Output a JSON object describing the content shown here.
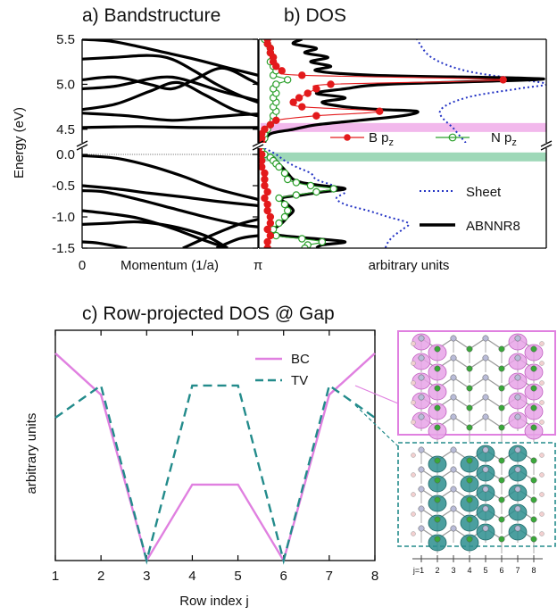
{
  "chart_data": [
    {
      "panel": "a",
      "type": "line",
      "title": "a) Bandstructure",
      "ylabel": "Energy (eV)",
      "xlabel": "Momentum (1/a)",
      "xticks": [
        "0",
        "π"
      ],
      "yticks_upper": [
        "5.5",
        "5.0",
        "4.5"
      ],
      "yticks_lower": [
        "0.0",
        "-0.5",
        "-1.0",
        "-1.5"
      ],
      "ylim_upper": [
        4.35,
        5.5
      ],
      "ylim_lower": [
        -1.5,
        0.1
      ],
      "bands_upper": [
        [
          [
            0.0,
            5.5
          ],
          [
            0.5,
            5.48
          ],
          [
            1.0,
            5.42
          ],
          [
            1.5,
            5.35
          ],
          [
            2.0,
            5.28
          ],
          [
            2.5,
            5.2
          ],
          [
            3.14,
            5.1
          ]
        ],
        [
          [
            0.0,
            5.28
          ],
          [
            0.6,
            5.3
          ],
          [
            1.2,
            5.32
          ],
          [
            1.6,
            5.28
          ],
          [
            2.0,
            5.15
          ],
          [
            2.4,
            5.0
          ],
          [
            2.8,
            4.88
          ],
          [
            3.14,
            4.8
          ]
        ],
        [
          [
            0.0,
            5.05
          ],
          [
            0.6,
            5.08
          ],
          [
            1.2,
            5.0
          ],
          [
            1.6,
            4.95
          ],
          [
            2.0,
            5.05
          ],
          [
            2.5,
            5.18
          ],
          [
            3.0,
            5.05
          ],
          [
            3.14,
            5.0
          ]
        ],
        [
          [
            0.0,
            4.95
          ],
          [
            0.6,
            4.98
          ],
          [
            1.2,
            5.06
          ],
          [
            1.6,
            5.08
          ],
          [
            2.0,
            5.02
          ],
          [
            2.5,
            4.92
          ],
          [
            3.14,
            4.82
          ]
        ],
        [
          [
            0.0,
            4.72
          ],
          [
            0.6,
            4.78
          ],
          [
            1.2,
            4.92
          ],
          [
            1.7,
            5.02
          ],
          [
            2.2,
            4.88
          ],
          [
            2.7,
            4.72
          ],
          [
            3.14,
            4.65
          ]
        ],
        [
          [
            0.0,
            4.68
          ],
          [
            0.8,
            4.65
          ],
          [
            1.6,
            4.6
          ],
          [
            2.2,
            4.63
          ],
          [
            2.8,
            4.66
          ],
          [
            3.14,
            4.67
          ]
        ],
        [
          [
            0.0,
            4.52
          ],
          [
            1.0,
            4.53
          ],
          [
            2.0,
            4.52
          ],
          [
            3.14,
            4.52
          ]
        ]
      ],
      "bands_lower": [
        [
          [
            0.0,
            -0.02
          ],
          [
            0.6,
            -0.06
          ],
          [
            1.2,
            -0.18
          ],
          [
            1.8,
            -0.35
          ],
          [
            2.4,
            -0.55
          ],
          [
            3.14,
            -0.72
          ]
        ],
        [
          [
            0.0,
            -0.5
          ],
          [
            0.6,
            -0.55
          ],
          [
            1.2,
            -0.62
          ],
          [
            1.8,
            -0.68
          ],
          [
            2.4,
            -0.75
          ],
          [
            3.14,
            -0.82
          ]
        ],
        [
          [
            0.0,
            -0.58
          ],
          [
            0.4,
            -0.6
          ],
          [
            1.0,
            -0.72
          ],
          [
            1.6,
            -0.86
          ],
          [
            2.2,
            -1.0
          ],
          [
            2.8,
            -1.12
          ],
          [
            3.14,
            -1.16
          ]
        ],
        [
          [
            0.0,
            -0.9
          ],
          [
            0.5,
            -0.95
          ],
          [
            1.0,
            -1.02
          ],
          [
            1.6,
            -1.18
          ],
          [
            2.2,
            -1.38
          ],
          [
            2.6,
            -1.5
          ]
        ],
        [
          [
            0.0,
            -1.12
          ],
          [
            0.5,
            -1.1
          ],
          [
            1.0,
            -1.08
          ],
          [
            1.6,
            -1.15
          ],
          [
            2.2,
            -1.3
          ],
          [
            2.6,
            -1.5
          ]
        ],
        [
          [
            1.8,
            -1.5
          ],
          [
            2.3,
            -1.3
          ],
          [
            2.8,
            -1.12
          ],
          [
            3.14,
            -1.04
          ]
        ],
        [
          [
            2.4,
            -1.5
          ],
          [
            2.8,
            -1.35
          ],
          [
            3.14,
            -1.3
          ]
        ],
        [
          [
            0.0,
            -1.4
          ],
          [
            0.3,
            -1.42
          ],
          [
            0.8,
            -1.5
          ]
        ]
      ]
    },
    {
      "panel": "b",
      "type": "line",
      "title": "b) DOS",
      "xlabel": "arbitrary units",
      "legend": [
        {
          "name": "B p",
          "sub": "z",
          "color": "#e31a1c",
          "style": "line+filled-circle"
        },
        {
          "name": "N p",
          "sub": "z",
          "color": "#2ca02c",
          "style": "line+open-circle"
        },
        {
          "name": "Sheet",
          "color": "#2333c4",
          "style": "dotted"
        },
        {
          "name": "ABNNR8",
          "color": "#000000",
          "style": "thick"
        }
      ],
      "highlights": [
        {
          "energy": 4.52,
          "color": "#f2b8ec",
          "region": "upper"
        },
        {
          "energy": -0.04,
          "color": "#9ed8b8",
          "region": "lower"
        }
      ],
      "sheet_upper": [
        [
          4.35,
          0.72
        ],
        [
          4.5,
          0.68
        ],
        [
          4.7,
          0.63
        ],
        [
          4.85,
          0.72
        ],
        [
          4.95,
          0.9
        ],
        [
          5.0,
          1.0
        ],
        [
          5.05,
          0.92
        ],
        [
          5.15,
          0.72
        ],
        [
          5.3,
          0.6
        ],
        [
          5.5,
          0.55
        ]
      ],
      "abnnr_upper": [
        [
          4.35,
          0.02
        ],
        [
          4.45,
          0.04
        ],
        [
          4.5,
          0.12
        ],
        [
          4.55,
          0.2
        ],
        [
          4.6,
          0.35
        ],
        [
          4.65,
          0.5
        ],
        [
          4.7,
          0.55
        ],
        [
          4.72,
          0.42
        ],
        [
          4.75,
          0.3
        ],
        [
          4.8,
          0.22
        ],
        [
          4.85,
          0.3
        ],
        [
          4.9,
          0.2
        ],
        [
          4.95,
          0.3
        ],
        [
          5.0,
          0.45
        ],
        [
          5.05,
          0.95
        ],
        [
          5.07,
          0.9
        ],
        [
          5.1,
          0.4
        ],
        [
          5.15,
          0.2
        ],
        [
          5.2,
          0.25
        ],
        [
          5.25,
          0.18
        ],
        [
          5.3,
          0.24
        ],
        [
          5.35,
          0.16
        ],
        [
          5.4,
          0.2
        ],
        [
          5.45,
          0.12
        ],
        [
          5.5,
          0.15
        ]
      ],
      "bpz_upper": [
        [
          4.35,
          0.01
        ],
        [
          4.4,
          0.01
        ],
        [
          4.45,
          0.01
        ],
        [
          4.5,
          0.02
        ],
        [
          4.55,
          0.04
        ],
        [
          4.6,
          0.06
        ],
        [
          4.65,
          0.2
        ],
        [
          4.7,
          0.42
        ],
        [
          4.75,
          0.15
        ],
        [
          4.8,
          0.12
        ],
        [
          4.85,
          0.14
        ],
        [
          4.9,
          0.17
        ],
        [
          4.95,
          0.2
        ],
        [
          5.0,
          0.25
        ],
        [
          5.05,
          0.85
        ],
        [
          5.1,
          0.15
        ],
        [
          5.15,
          0.08
        ],
        [
          5.2,
          0.06
        ],
        [
          5.25,
          0.05
        ],
        [
          5.3,
          0.05
        ],
        [
          5.35,
          0.04
        ],
        [
          5.4,
          0.04
        ],
        [
          5.45,
          0.03
        ],
        [
          5.5,
          0.03
        ]
      ],
      "npz_upper": [
        [
          4.35,
          0.01
        ],
        [
          4.4,
          0.02
        ],
        [
          4.45,
          0.02
        ],
        [
          4.5,
          0.03
        ],
        [
          4.55,
          0.04
        ],
        [
          4.6,
          0.05
        ],
        [
          4.65,
          0.05
        ],
        [
          4.7,
          0.06
        ],
        [
          4.75,
          0.05
        ],
        [
          4.8,
          0.06
        ],
        [
          4.85,
          0.05
        ],
        [
          4.9,
          0.06
        ],
        [
          4.95,
          0.05
        ],
        [
          5.0,
          0.06
        ],
        [
          5.05,
          0.1
        ],
        [
          5.1,
          0.05
        ],
        [
          5.15,
          0.06
        ],
        [
          5.2,
          0.05
        ],
        [
          5.25,
          0.04
        ],
        [
          5.3,
          0.05
        ],
        [
          5.35,
          0.04
        ],
        [
          5.4,
          0.04
        ],
        [
          5.45,
          0.03
        ],
        [
          5.5,
          0.02
        ]
      ],
      "sheet_lower": [
        [
          0.1,
          0.02
        ],
        [
          0.0,
          0.06
        ],
        [
          -0.1,
          0.09
        ],
        [
          -0.2,
          0.13
        ],
        [
          -0.3,
          0.18
        ],
        [
          -0.4,
          0.2
        ],
        [
          -0.5,
          0.26
        ],
        [
          -0.6,
          0.3
        ],
        [
          -0.7,
          0.27
        ],
        [
          -0.8,
          0.3
        ],
        [
          -0.9,
          0.38
        ],
        [
          -1.0,
          0.45
        ],
        [
          -1.1,
          0.52
        ],
        [
          -1.2,
          0.5
        ],
        [
          -1.3,
          0.47
        ],
        [
          -1.4,
          0.45
        ],
        [
          -1.5,
          0.44
        ]
      ],
      "abnnr_lower": [
        [
          0.1,
          0.0
        ],
        [
          0.05,
          0.01
        ],
        [
          0.0,
          0.02
        ],
        [
          -0.05,
          0.05
        ],
        [
          -0.1,
          0.06
        ],
        [
          -0.15,
          0.07
        ],
        [
          -0.2,
          0.08
        ],
        [
          -0.3,
          0.1
        ],
        [
          -0.4,
          0.12
        ],
        [
          -0.45,
          0.15
        ],
        [
          -0.5,
          0.22
        ],
        [
          -0.55,
          0.3
        ],
        [
          -0.6,
          0.22
        ],
        [
          -0.65,
          0.15
        ],
        [
          -0.7,
          0.08
        ],
        [
          -0.8,
          0.1
        ],
        [
          -0.9,
          0.12
        ],
        [
          -1.0,
          0.1
        ],
        [
          -1.1,
          0.08
        ],
        [
          -1.2,
          0.05
        ],
        [
          -1.25,
          0.04
        ],
        [
          -1.3,
          0.08
        ],
        [
          -1.35,
          0.2
        ],
        [
          -1.4,
          0.3
        ],
        [
          -1.45,
          0.22
        ],
        [
          -1.5,
          0.2
        ]
      ],
      "bpz_lower": [
        [
          0.1,
          0.0
        ],
        [
          0.0,
          0.01
        ],
        [
          -0.1,
          0.01
        ],
        [
          -0.2,
          0.01
        ],
        [
          -0.3,
          0.02
        ],
        [
          -0.4,
          0.02
        ],
        [
          -0.5,
          0.02
        ],
        [
          -0.6,
          0.03
        ],
        [
          -0.7,
          0.02
        ],
        [
          -0.8,
          0.03
        ],
        [
          -0.9,
          0.03
        ],
        [
          -1.0,
          0.04
        ],
        [
          -1.1,
          0.04
        ],
        [
          -1.2,
          0.03
        ],
        [
          -1.3,
          0.04
        ],
        [
          -1.4,
          0.03
        ],
        [
          -1.5,
          0.03
        ]
      ],
      "npz_lower": [
        [
          0.1,
          0.0
        ],
        [
          0.05,
          0.01
        ],
        [
          0.0,
          0.02
        ],
        [
          -0.05,
          0.04
        ],
        [
          -0.1,
          0.05
        ],
        [
          -0.15,
          0.06
        ],
        [
          -0.2,
          0.07
        ],
        [
          -0.3,
          0.09
        ],
        [
          -0.4,
          0.1
        ],
        [
          -0.45,
          0.13
        ],
        [
          -0.5,
          0.18
        ],
        [
          -0.55,
          0.26
        ],
        [
          -0.6,
          0.2
        ],
        [
          -0.65,
          0.13
        ],
        [
          -0.7,
          0.07
        ],
        [
          -0.8,
          0.09
        ],
        [
          -0.9,
          0.1
        ],
        [
          -1.0,
          0.09
        ],
        [
          -1.1,
          0.07
        ],
        [
          -1.2,
          0.05
        ],
        [
          -1.3,
          0.06
        ],
        [
          -1.35,
          0.15
        ],
        [
          -1.4,
          0.22
        ],
        [
          -1.45,
          0.17
        ],
        [
          -1.5,
          0.16
        ]
      ]
    },
    {
      "panel": "c",
      "type": "line",
      "title": "c) Row-projected DOS @ Gap",
      "xlabel": "Row index j",
      "ylabel": "arbitrary units",
      "categories": [
        "1",
        "2",
        "3",
        "4",
        "5",
        "6",
        "7",
        "8"
      ],
      "x": [
        1,
        2,
        3,
        4,
        5,
        6,
        7,
        8
      ],
      "xlim": [
        1,
        8
      ],
      "ylim": [
        0,
        1
      ],
      "series": [
        {
          "name": "BC",
          "color": "#e080e0",
          "style": "solid",
          "values": [
            0.9,
            0.72,
            0.0,
            0.33,
            0.33,
            0.0,
            0.72,
            0.9
          ]
        },
        {
          "name": "TV",
          "color": "#238b8b",
          "style": "dashed",
          "values": [
            0.62,
            0.76,
            0.0,
            0.76,
            0.76,
            0.0,
            0.76,
            0.62
          ]
        }
      ]
    }
  ],
  "inset": {
    "row_labels": [
      "j=1",
      "2",
      "3",
      "4",
      "5",
      "6",
      "7",
      "8"
    ],
    "bc_frame_color": "#e080e0",
    "tv_frame_color": "#238b8b"
  }
}
